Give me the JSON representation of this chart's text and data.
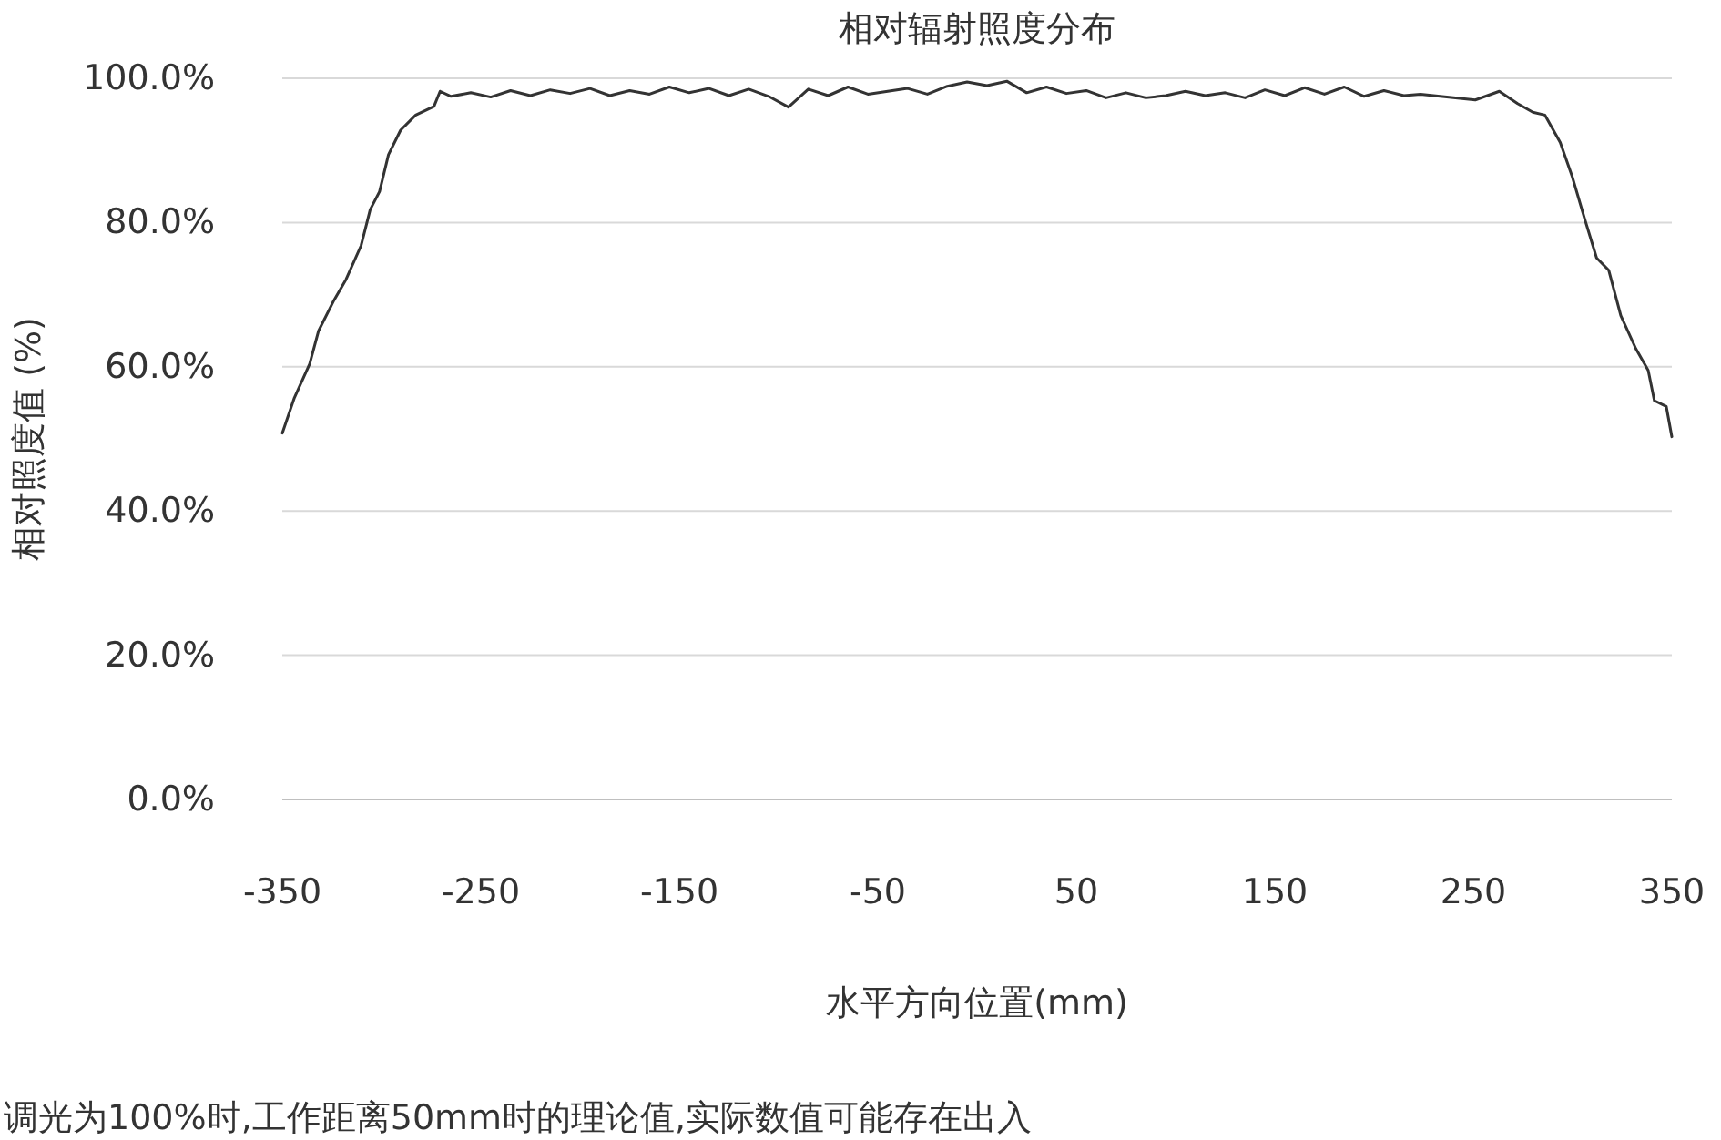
{
  "chart_data": {
    "type": "line",
    "title": "相对辐射照度分布",
    "xlabel": "水平方向位置(mm)",
    "ylabel": "相对照度值 (%)",
    "annotations": [
      "调光为100%时,工作距离50mm时的理论值,实际数值可能存在出入"
    ],
    "x": [
      -350,
      -343.9,
      -336.2,
      -331.7,
      -324,
      -317.9,
      -310.3,
      -305.7,
      -301,
      -296.5,
      -290.4,
      -282.8,
      -273.6,
      -270.5,
      -265,
      -255,
      -245,
      -235,
      -225,
      -215,
      -205,
      -195,
      -185,
      -175,
      -165,
      -155,
      -145,
      -135,
      -125,
      -115,
      -105,
      -95,
      -85,
      -75,
      -65,
      -55,
      -45,
      -35,
      -25,
      -15,
      -5,
      5,
      15,
      25,
      35,
      45,
      55,
      65,
      75,
      85,
      95,
      105,
      115,
      125,
      135,
      145,
      155,
      165,
      175,
      185,
      195,
      205,
      215,
      223.4,
      251,
      263.1,
      272.3,
      280,
      286.1,
      293.8,
      299.8,
      306,
      312.1,
      318.2,
      324.3,
      331.9,
      338.1,
      341.2,
      347.2,
      350
    ],
    "values": [
      50.8,
      55.7,
      60.4,
      65.0,
      69.2,
      72.1,
      76.8,
      81.8,
      84.3,
      89.4,
      92.8,
      94.9,
      96.1,
      98.2,
      97.5,
      98.0,
      97.4,
      98.3,
      97.6,
      98.4,
      97.9,
      98.6,
      97.6,
      98.3,
      97.8,
      98.8,
      98.0,
      98.6,
      97.6,
      98.5,
      97.5,
      96.0,
      98.5,
      97.6,
      98.8,
      97.8,
      98.2,
      98.6,
      97.8,
      98.9,
      99.5,
      99.0,
      99.6,
      98.0,
      98.8,
      97.9,
      98.3,
      97.3,
      98.0,
      97.3,
      97.6,
      98.2,
      97.6,
      98.0,
      97.3,
      98.4,
      97.6,
      98.7,
      97.8,
      98.8,
      97.5,
      98.3,
      97.6,
      97.8,
      97.0,
      98.2,
      96.5,
      95.3,
      94.9,
      91.1,
      86.4,
      80.6,
      75.1,
      73.4,
      67.1,
      62.5,
      59.5,
      55.3,
      54.5,
      50.3
    ],
    "color": "#333333",
    "xlim": [
      -350,
      350
    ],
    "ylim": [
      0,
      100
    ],
    "xticks": [
      -350,
      -250,
      -150,
      -50,
      50,
      150,
      250,
      350
    ],
    "yticks": [
      {
        "value": 0,
        "label": "0.0%"
      },
      {
        "value": 20,
        "label": "20.0%"
      },
      {
        "value": 40,
        "label": "40.0%"
      },
      {
        "value": 60,
        "label": "60.0%"
      },
      {
        "value": 80,
        "label": "80.0%"
      },
      {
        "value": 100,
        "label": "100.0%"
      }
    ],
    "grid": "y"
  }
}
